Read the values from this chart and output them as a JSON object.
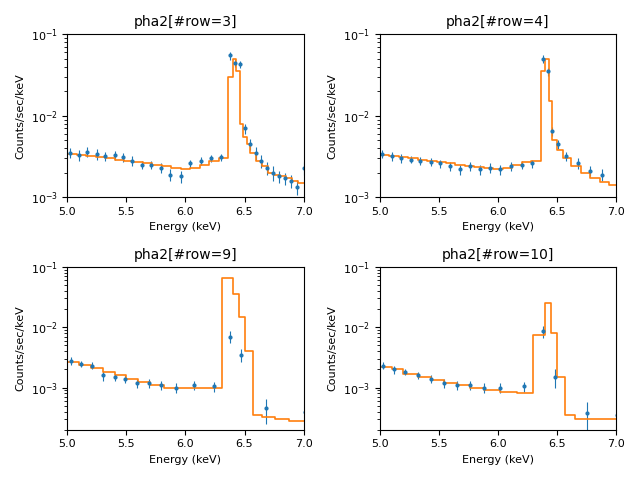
{
  "titles": [
    "pha2[#row=3]",
    "pha2[#row=4]",
    "pha2[#row=9]",
    "pha2[#row=10]"
  ],
  "xlabel": "Energy (keV)",
  "ylabel": "Counts/sec/keV",
  "xlim": [
    5.0,
    7.0
  ],
  "data_color": "#1f77b4",
  "model_color": "#ff7f0e",
  "panels": [
    {
      "ylim": [
        0.001,
        0.1
      ],
      "data_x": [
        5.02,
        5.1,
        5.17,
        5.25,
        5.32,
        5.4,
        5.47,
        5.55,
        5.63,
        5.71,
        5.79,
        5.87,
        5.96,
        6.04,
        6.13,
        6.22,
        6.3,
        6.38,
        6.42,
        6.46,
        6.5,
        6.55,
        6.6,
        6.64,
        6.69,
        6.74,
        6.79,
        6.84,
        6.89,
        6.94,
        7.0
      ],
      "data_y": [
        0.0035,
        0.0033,
        0.0036,
        0.0034,
        0.0032,
        0.0033,
        0.0031,
        0.0028,
        0.0025,
        0.0025,
        0.0023,
        0.0019,
        0.0018,
        0.0026,
        0.0028,
        0.003,
        0.0031,
        0.055,
        0.045,
        0.043,
        0.007,
        0.0045,
        0.0035,
        0.0028,
        0.0023,
        0.002,
        0.0018,
        0.0017,
        0.0016,
        0.00135,
        0.0023
      ],
      "data_yerr": [
        0.0005,
        0.0005,
        0.0005,
        0.0005,
        0.0004,
        0.0004,
        0.0004,
        0.0004,
        0.0003,
        0.0003,
        0.0003,
        0.0003,
        0.0003,
        0.0003,
        0.0003,
        0.0003,
        0.0003,
        0.006,
        0.005,
        0.004,
        0.001,
        0.0007,
        0.0006,
        0.0005,
        0.0004,
        0.0004,
        0.0003,
        0.0003,
        0.0003,
        0.0003,
        0.0004
      ],
      "model_bins": [
        5.0,
        5.08,
        5.16,
        5.24,
        5.32,
        5.4,
        5.48,
        5.56,
        5.64,
        5.72,
        5.8,
        5.88,
        5.96,
        6.04,
        6.12,
        6.2,
        6.28,
        6.36,
        6.4,
        6.43,
        6.46,
        6.49,
        6.52,
        6.55,
        6.6,
        6.65,
        6.7,
        6.75,
        6.8,
        6.85,
        6.9,
        6.95,
        7.0
      ],
      "model_vals": [
        0.0034,
        0.0033,
        0.0032,
        0.0031,
        0.003,
        0.0029,
        0.0028,
        0.0027,
        0.0026,
        0.0025,
        0.0024,
        0.0023,
        0.0022,
        0.0023,
        0.0025,
        0.0028,
        0.003,
        0.03,
        0.05,
        0.035,
        0.008,
        0.0055,
        0.0045,
        0.0035,
        0.0028,
        0.0024,
        0.002,
        0.0019,
        0.0018,
        0.0017,
        0.0016,
        0.0015
      ]
    },
    {
      "ylim": [
        0.001,
        0.1
      ],
      "data_x": [
        5.02,
        5.1,
        5.18,
        5.26,
        5.34,
        5.43,
        5.51,
        5.59,
        5.68,
        5.76,
        5.85,
        5.93,
        6.02,
        6.11,
        6.2,
        6.29,
        6.38,
        6.42,
        6.46,
        6.51,
        6.58,
        6.68,
        6.78,
        6.88,
        7.0
      ],
      "data_y": [
        0.0034,
        0.0032,
        0.003,
        0.0029,
        0.0028,
        0.0027,
        0.0026,
        0.0024,
        0.0022,
        0.0024,
        0.0022,
        0.0023,
        0.0022,
        0.0024,
        0.0025,
        0.0026,
        0.05,
        0.035,
        0.0065,
        0.0045,
        0.0032,
        0.0026,
        0.0021,
        0.0019,
        0.0008
      ],
      "data_yerr": [
        0.0004,
        0.0004,
        0.0004,
        0.0003,
        0.0003,
        0.0003,
        0.0003,
        0.0003,
        0.0003,
        0.0003,
        0.0003,
        0.0003,
        0.0003,
        0.0003,
        0.0003,
        0.0003,
        0.005,
        0.004,
        0.0008,
        0.0006,
        0.0004,
        0.0004,
        0.0003,
        0.0003,
        0.0002
      ],
      "model_bins": [
        5.0,
        5.08,
        5.16,
        5.24,
        5.32,
        5.4,
        5.48,
        5.56,
        5.64,
        5.72,
        5.8,
        5.88,
        5.96,
        6.04,
        6.12,
        6.2,
        6.28,
        6.36,
        6.4,
        6.43,
        6.46,
        6.5,
        6.55,
        6.62,
        6.7,
        6.78,
        6.86,
        6.94,
        7.0
      ],
      "model_vals": [
        0.0033,
        0.0032,
        0.0031,
        0.003,
        0.0029,
        0.0028,
        0.0027,
        0.0026,
        0.0025,
        0.0024,
        0.00235,
        0.0023,
        0.0022,
        0.0023,
        0.0025,
        0.0027,
        0.0028,
        0.035,
        0.05,
        0.015,
        0.005,
        0.0038,
        0.003,
        0.0024,
        0.002,
        0.0017,
        0.00155,
        0.0014
      ]
    },
    {
      "ylim": [
        0.0002,
        0.1
      ],
      "data_x": [
        5.03,
        5.12,
        5.21,
        5.3,
        5.4,
        5.49,
        5.59,
        5.69,
        5.79,
        5.92,
        6.07,
        6.24,
        6.38,
        6.47,
        6.68,
        7.01
      ],
      "data_y": [
        0.0028,
        0.0025,
        0.0023,
        0.0016,
        0.0015,
        0.0014,
        0.0012,
        0.0012,
        0.0011,
        0.001,
        0.0011,
        0.00105,
        0.007,
        0.0035,
        0.00045,
        0.0004
      ],
      "data_yerr": [
        0.0004,
        0.0003,
        0.0003,
        0.0003,
        0.0002,
        0.0002,
        0.0002,
        0.0002,
        0.0002,
        0.0002,
        0.0002,
        0.0002,
        0.0015,
        0.0008,
        0.0002,
        0.0003
      ],
      "model_bins": [
        5.0,
        5.1,
        5.2,
        5.3,
        5.4,
        5.5,
        5.6,
        5.7,
        5.82,
        5.97,
        6.14,
        6.31,
        6.4,
        6.45,
        6.5,
        6.57,
        6.65,
        6.76,
        6.88,
        7.0
      ],
      "model_vals": [
        0.0026,
        0.00235,
        0.0021,
        0.0018,
        0.0016,
        0.0014,
        0.00125,
        0.0011,
        0.001,
        0.001,
        0.001,
        0.065,
        0.035,
        0.015,
        0.004,
        0.00035,
        0.00032,
        0.0003,
        0.00028
      ]
    },
    {
      "ylim": [
        0.0002,
        0.1
      ],
      "data_x": [
        5.03,
        5.12,
        5.21,
        5.32,
        5.43,
        5.54,
        5.65,
        5.76,
        5.88,
        6.02,
        6.22,
        6.38,
        6.48,
        6.75,
        7.01
      ],
      "data_y": [
        0.0023,
        0.002,
        0.0018,
        0.0016,
        0.0014,
        0.0012,
        0.0011,
        0.0011,
        0.001,
        0.001,
        0.00105,
        0.0085,
        0.0015,
        0.00038,
        0.00035
      ],
      "data_yerr": [
        0.0003,
        0.0003,
        0.0002,
        0.0002,
        0.0002,
        0.0002,
        0.0002,
        0.0002,
        0.0002,
        0.0002,
        0.0002,
        0.002,
        0.0005,
        0.0002,
        0.0002
      ],
      "model_bins": [
        5.0,
        5.1,
        5.2,
        5.32,
        5.43,
        5.54,
        5.65,
        5.76,
        5.88,
        6.02,
        6.16,
        6.3,
        6.4,
        6.45,
        6.5,
        6.57,
        6.65,
        7.0
      ],
      "model_vals": [
        0.0022,
        0.002,
        0.0017,
        0.0015,
        0.00135,
        0.0012,
        0.0011,
        0.001,
        0.0009,
        0.00085,
        0.0008,
        0.0075,
        0.025,
        0.008,
        0.0015,
        0.00035,
        0.0003
      ]
    }
  ]
}
